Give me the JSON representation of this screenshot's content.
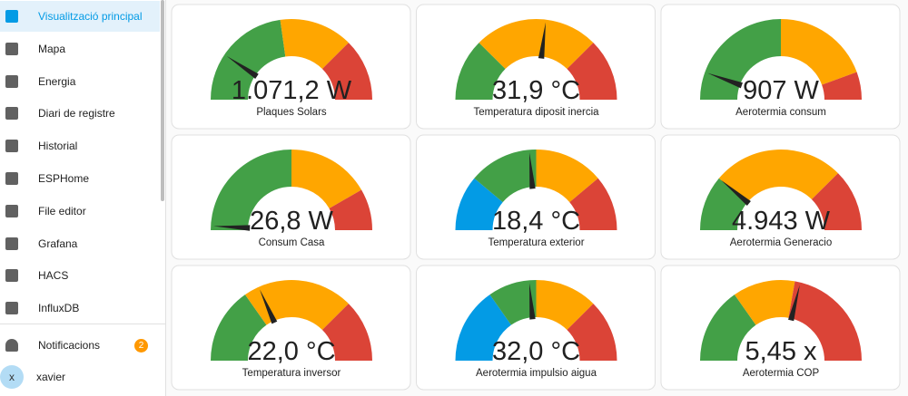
{
  "sidebar": {
    "items": [
      "Visualització principal",
      "Mapa",
      "Energia",
      "Diari de registre",
      "Historial",
      "ESPHome",
      "File editor",
      "Grafana",
      "HACS",
      "InfluxDB"
    ],
    "notifications": {
      "label": "Notificacions",
      "badge": "2"
    },
    "user": {
      "initial": "x",
      "name": "xavier"
    }
  },
  "cards": [
    {
      "value": "1.071,2 W",
      "name": "Plaques Solars"
    },
    {
      "value": "31,9 °C",
      "name": "Temperatura diposit inercia"
    },
    {
      "value": "907 W",
      "name": "Aerotermia consum"
    },
    {
      "value": "26,8 W",
      "name": "Consum Casa"
    },
    {
      "value": "18,4 °C",
      "name": "Temperatura exterior"
    },
    {
      "value": "4.943 W",
      "name": "Aerotermia Generacio"
    },
    {
      "value": "22,0 °C",
      "name": "Temperatura inversor"
    },
    {
      "value": "32,0 °C",
      "name": "Aerotermia impulsio aigua"
    },
    {
      "value": "5,45 x",
      "name": "Aerotermia COP"
    }
  ]
}
